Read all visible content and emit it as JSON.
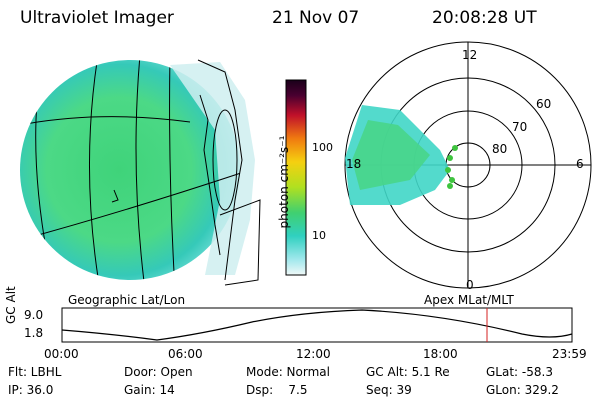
{
  "header": {
    "instrument": "Ultraviolet Imager",
    "date": "21 Nov 07",
    "time": "20:08:28 UT"
  },
  "colorbar": {
    "unit_label": "photon cm⁻²s⁻¹",
    "ticks": [
      "100",
      "10"
    ]
  },
  "polar_plot": {
    "mlat_labels": [
      "60",
      "70",
      "80"
    ],
    "mlt_labels": [
      "12",
      "18",
      "6",
      "0"
    ]
  },
  "maps": {
    "left_caption": "Geographic Lat/Lon",
    "right_caption": "Apex MLat/MLT"
  },
  "altitude_plot": {
    "y_label": "GC Alt",
    "y_ticks": [
      "9.0",
      "1.8"
    ],
    "x_ticks": [
      "00:00",
      "06:00",
      "12:00",
      "18:00",
      "23:59"
    ],
    "current_time_marker": "20:08",
    "colors": {
      "marker": "#d42020",
      "curve": "#000000"
    }
  },
  "footer": {
    "row1": {
      "filter": "Flt: LBHL",
      "door": "Door: Open",
      "mode": "Mode: Normal",
      "gc_alt": "GC Alt: 5.1 Re",
      "glat": "GLat: -58.3"
    },
    "row2": {
      "ip": "IP: 36.0",
      "gain": "Gain: 14",
      "dsp": "Dsp:    7.5",
      "seq": "Seq: 39",
      "glon": "GLon: 329.2"
    }
  }
}
